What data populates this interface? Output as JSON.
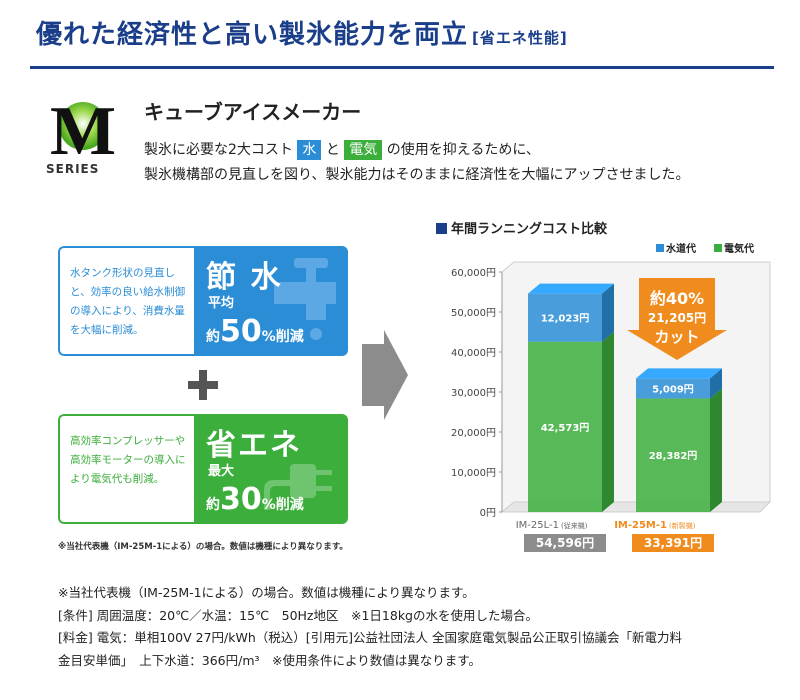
{
  "header": {
    "title": "優れた経済性と高い製氷能力を両立",
    "subtitle": "[省エネ性能]"
  },
  "product": {
    "logo_letter": "M",
    "logo_series": "SERIES",
    "heading": "キューブアイスメーカー",
    "desc_part1": "製氷に必要な2大コスト",
    "tag_water": "水",
    "desc_and": "と",
    "tag_elec": "電気",
    "desc_part2": "の使用を抑えるために、",
    "desc_line2": "製氷機構部の見直しを図り、製氷能力はそのままに経済性を大幅にアップさせました。"
  },
  "colors": {
    "brand": "#1a3e8a",
    "water": "#2b8dd6",
    "electricity": "#3cae3c",
    "highlight": "#f08c1e"
  },
  "features": {
    "water": {
      "text": "水タンク形状の見直しと、効率の良い給水制御の導入により、消費水量を大幅に削減。",
      "title": "節 水",
      "label": "平均",
      "pct_prefix": "約",
      "pct_value": "50",
      "pct_suffix": "%削減",
      "icon": "faucet-icon"
    },
    "energy": {
      "text": "高効率コンプレッサーや高効率モーターの導入により電気代も削減。",
      "title": "省エネ",
      "label": "最大",
      "pct_prefix": "約",
      "pct_value": "30",
      "pct_suffix": "%削減",
      "icon": "plug-icon"
    },
    "note": "※当社代表機（IM-25M-1による）の場合。数値は機種により異なります。"
  },
  "chart_data": {
    "type": "bar",
    "title": "年間ランニングコスト比較",
    "stacked": true,
    "categories": [
      "IM-25L-1",
      "IM-25M-1"
    ],
    "category_notes": [
      "(従来機)",
      "(新製機)"
    ],
    "series": [
      {
        "name": "電気代",
        "color": "#3cae3c",
        "values": [
          42573,
          28382
        ],
        "labels": [
          "42,573円",
          "28,382円"
        ]
      },
      {
        "name": "水道代",
        "color": "#2b8dd6",
        "values": [
          12023,
          5009
        ],
        "labels": [
          "12,023円",
          "5,009円"
        ]
      }
    ],
    "totals": [
      "54,596円",
      "33,391円"
    ],
    "ylim": [
      0,
      60000
    ],
    "yticks": [
      "0円",
      "10,000円",
      "20,000円",
      "30,000円",
      "40,000円",
      "50,000円",
      "60,000円"
    ],
    "legend_position": "top-right",
    "grid": false,
    "callout": {
      "line1": "約40%",
      "line2": "21,205円",
      "line3": "カット"
    }
  },
  "footnotes": [
    "※当社代表機（IM-25M-1による）の場合。数値は機種により異なります。",
    "[条件] 周囲温度：20℃／水温：15℃　50Hz地区　※1日18kgの水を使用した場合。",
    "[料金] 電気：単相100V 27円/kWh（税込）[引用元]公益社団法人 全国家庭電気製品公正取引協議会「新電力料",
    "金目安単価」　上下水道：366円/m³　※使用条件により数値は異なります。"
  ]
}
